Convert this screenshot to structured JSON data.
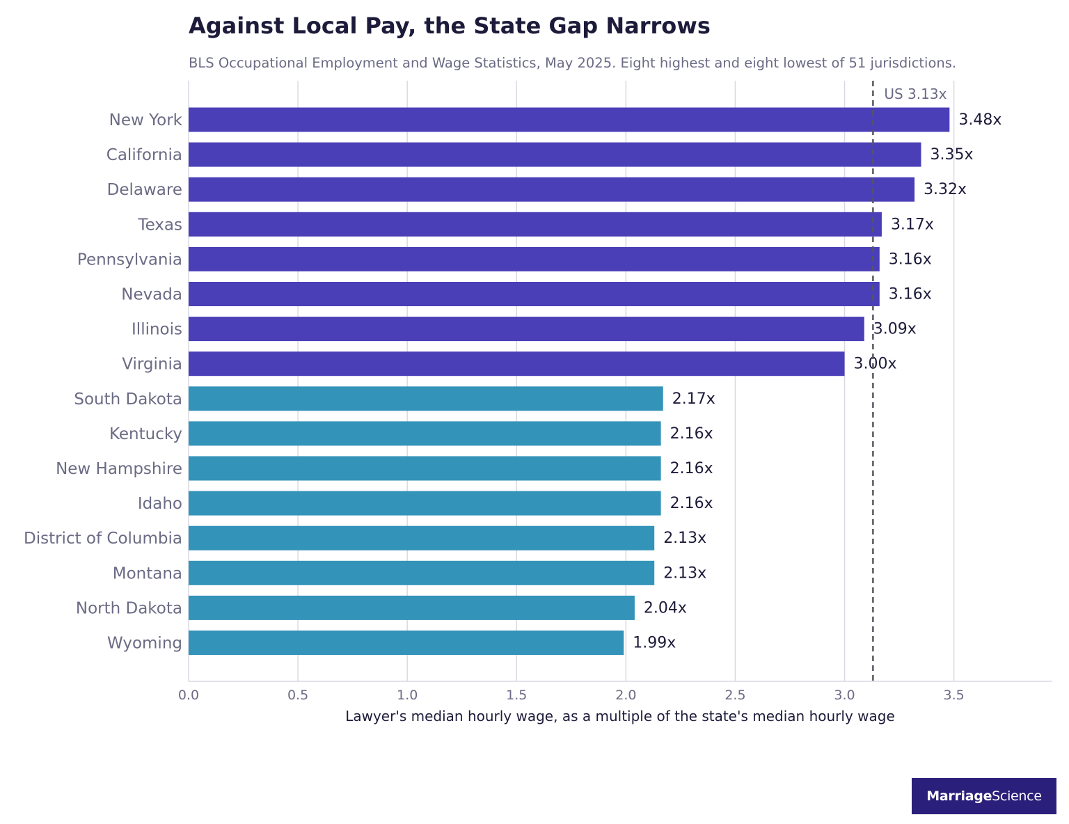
{
  "header": {
    "title": "Against Local Pay, the State Gap Narrows",
    "subtitle": "BLS Occupational Employment and Wage Statistics, May 2025. Eight highest and eight lowest of 51 jurisdictions."
  },
  "brand": {
    "name_strong": "Marriage",
    "name_light": "Science",
    "background": "#2a1f7a"
  },
  "colors": {
    "high_group": "#4b3fb8",
    "low_group": "#3393b9",
    "reference_line": "#555560",
    "grid": "#d9d9e3"
  },
  "chart_data": {
    "type": "bar",
    "orientation": "horizontal",
    "title": "Against Local Pay, the State Gap Narrows",
    "subtitle": "BLS Occupational Employment and Wage Statistics, May 2025. Eight highest and eight lowest of 51 jurisdictions.",
    "xlabel": "Lawyer's median hourly wage, as a multiple of the state's median hourly wage",
    "ylabel": "",
    "xlim": [
      0,
      3.95
    ],
    "xticks": [
      "0.0",
      "0.5",
      "1.0",
      "1.5",
      "2.0",
      "2.5",
      "3.0",
      "3.5"
    ],
    "grid": "vertical",
    "categories": [
      "New York",
      "California",
      "Delaware",
      "Texas",
      "Pennsylvania",
      "Nevada",
      "Illinois",
      "Virginia",
      "South Dakota",
      "Kentucky",
      "New Hampshire",
      "Idaho",
      "District of Columbia",
      "Montana",
      "North Dakota",
      "Wyoming"
    ],
    "values": [
      3.48,
      3.35,
      3.32,
      3.17,
      3.16,
      3.16,
      3.09,
      3.0,
      2.17,
      2.16,
      2.16,
      2.16,
      2.13,
      2.13,
      2.04,
      1.99
    ],
    "value_labels": [
      "3.48x",
      "3.35x",
      "3.32x",
      "3.17x",
      "3.16x",
      "3.16x",
      "3.09x",
      "3.00x",
      "2.17x",
      "2.16x",
      "2.16x",
      "2.16x",
      "2.13x",
      "2.13x",
      "2.04x",
      "1.99x"
    ],
    "groups": [
      "high",
      "high",
      "high",
      "high",
      "high",
      "high",
      "high",
      "high",
      "low",
      "low",
      "low",
      "low",
      "low",
      "low",
      "low",
      "low"
    ],
    "reference_line": {
      "value": 3.13,
      "label": "US 3.13x",
      "style": "dashed"
    }
  }
}
